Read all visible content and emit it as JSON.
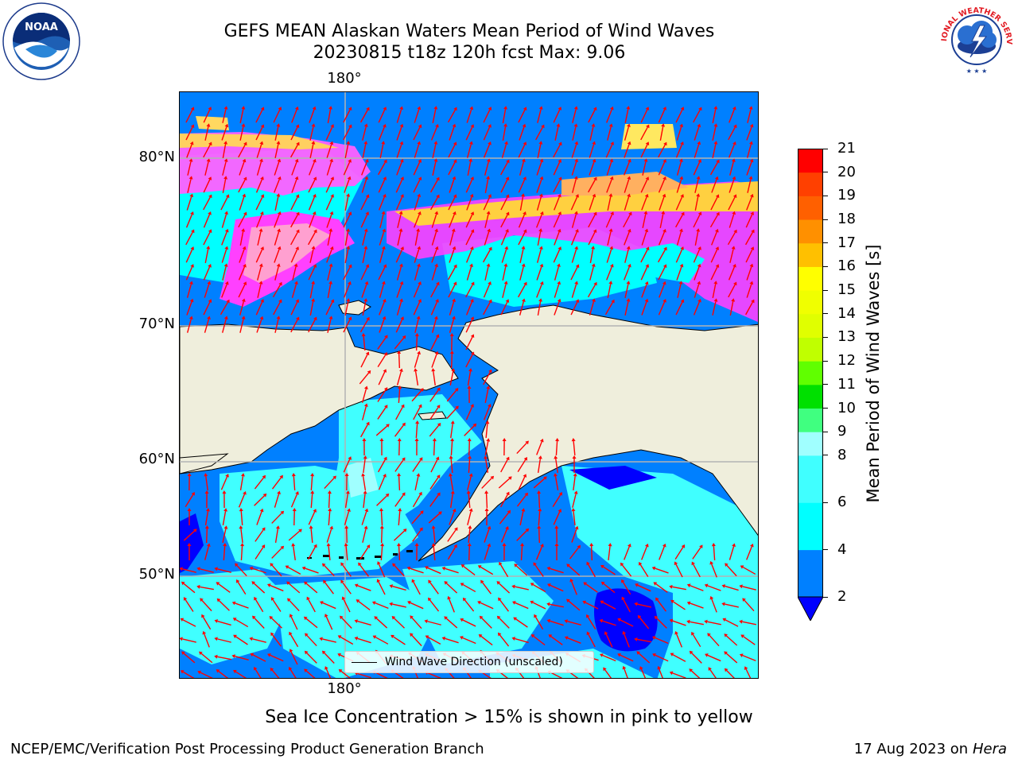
{
  "header": {
    "title_line1": "GEFS MEAN Alaskan Waters Mean Period of Wind Waves",
    "title_line2": "20230815 t18z 120h fcst   Max: 9.06"
  },
  "logos": {
    "noaa": "NOAA",
    "noaa_ring": "NATIONAL OCEANIC AND ATMOSPHERIC ADMINISTRATION • U.S. DEPARTMENT OF COMMERCE",
    "nws_ring": "NATIONAL WEATHER SERVICE"
  },
  "map": {
    "lon_labels": [
      "180°",
      "180°"
    ],
    "lat_labels": [
      "80°N",
      "70°N",
      "60°N",
      "50°N"
    ],
    "legend_label": "Wind Wave Direction (unscaled)",
    "colors": {
      "land": "#efeedc",
      "arrow": "#ff0000",
      "gridline": "#b3b3b3"
    }
  },
  "colorbar": {
    "label": "Mean Period of Wind Waves [s]",
    "ticks": [
      "21",
      "20",
      "19",
      "18",
      "17",
      "16",
      "15",
      "14",
      "13",
      "12",
      "11",
      "10",
      "9",
      "8",
      "6",
      "4",
      "2"
    ],
    "bins": [
      {
        "from": 2,
        "to": 4,
        "color": "#0080ff"
      },
      {
        "from": 4,
        "to": 6,
        "color": "#00ffff"
      },
      {
        "from": 6,
        "to": 8,
        "color": "#40ffff"
      },
      {
        "from": 8,
        "to": 9,
        "color": "#a0ffff"
      },
      {
        "from": 9,
        "to": 10,
        "color": "#40ff80"
      },
      {
        "from": 10,
        "to": 11,
        "color": "#00e000"
      },
      {
        "from": 11,
        "to": 12,
        "color": "#60ff00"
      },
      {
        "from": 12,
        "to": 13,
        "color": "#c0ff00"
      },
      {
        "from": 13,
        "to": 14,
        "color": "#e0ff00"
      },
      {
        "from": 14,
        "to": 15,
        "color": "#f0ff00"
      },
      {
        "from": 15,
        "to": 16,
        "color": "#ffff00"
      },
      {
        "from": 16,
        "to": 17,
        "color": "#ffc000"
      },
      {
        "from": 17,
        "to": 18,
        "color": "#ff9000"
      },
      {
        "from": 18,
        "to": 19,
        "color": "#ff6000"
      },
      {
        "from": 19,
        "to": 20,
        "color": "#ff4000"
      },
      {
        "from": 20,
        "to": 21,
        "color": "#ff0000"
      }
    ],
    "under_color": "#0000ff"
  },
  "footer": {
    "ice_note": "Sea Ice Concentration > 15% is shown in pink to yellow",
    "credit": "NCEP/EMC/Verification Post Processing Product Generation Branch",
    "date": "17 Aug 2023 on",
    "machine": "Hera"
  }
}
